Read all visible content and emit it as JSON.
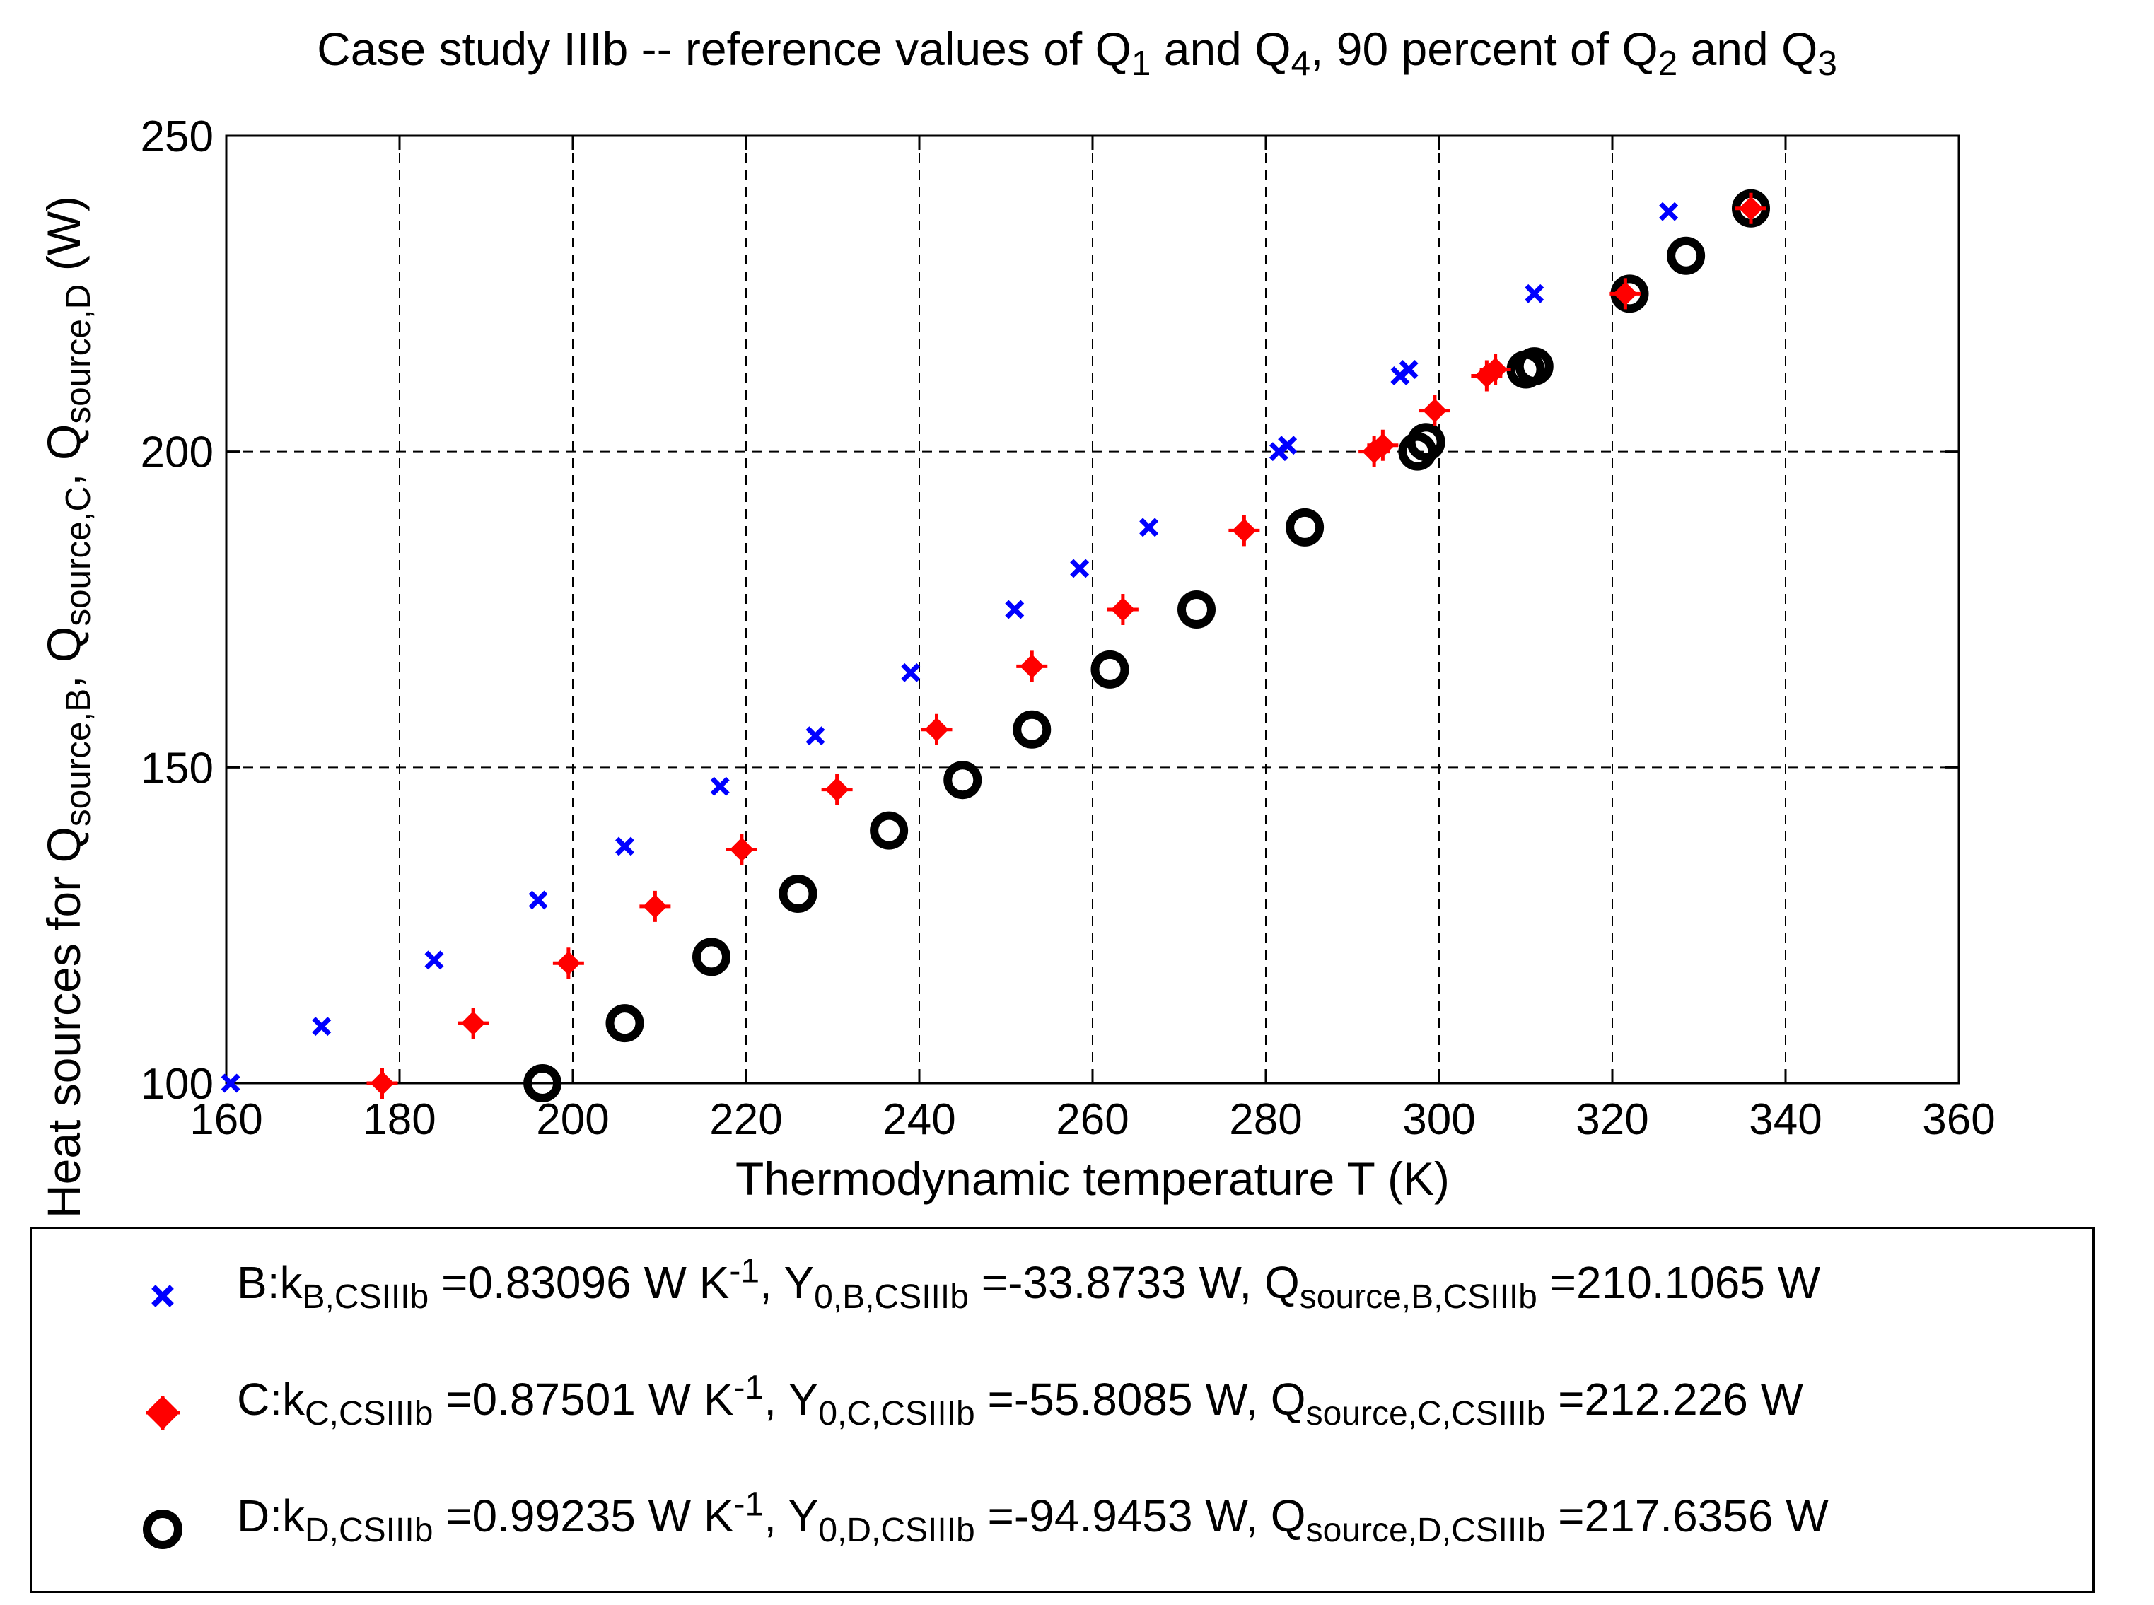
{
  "chart_data": {
    "type": "scatter",
    "title": "Case study IIIb -- reference values of Q1 and Q4, 90 percent of Q2 and Q3",
    "title_parts": {
      "pre": "Case study IIIb -- reference values of Q",
      "s1": "1",
      "and1": " and Q",
      "s4": "4",
      "mid": ", 90 percent of Q",
      "s2": "2",
      "and2": " and Q",
      "s3": "3"
    },
    "xlabel": "Thermodynamic temperature T (K)",
    "ylabel": "Heat sources for Qsource,B, Qsource,C, Qsource,D (W)",
    "ylabel_parts": {
      "pre": "Heat sources for Q",
      "b": "source,B",
      "c1": ", Q",
      "c": "source,C",
      "d1": ", Q",
      "d": "source,D",
      "unit": " (W)"
    },
    "xlim": [
      160,
      360
    ],
    "ylim": [
      100,
      250
    ],
    "xticks": [
      160,
      180,
      200,
      220,
      240,
      260,
      280,
      300,
      320,
      340,
      360
    ],
    "yticks": [
      100,
      150,
      200,
      250
    ],
    "grid": true,
    "legend_position": "bottom (below plot)",
    "series": [
      {
        "name": "B",
        "color": "#0000ff",
        "marker": "x",
        "legend": {
          "k": "B:k",
          "k_sub": "B,CSIIIb",
          "k_val": " =0.83096 W K",
          "k_exp": "-1",
          "y": ", Y",
          "y_sub": "0,B,CSIIIb",
          "y_val": " =-33.8733 W, Q",
          "q_sub": "source,B,CSIIIb",
          "q_val": " =210.1065 W"
        },
        "points": [
          [
            160.5,
            100
          ],
          [
            171,
            109
          ],
          [
            184,
            119.5
          ],
          [
            196,
            129
          ],
          [
            206,
            137.5
          ],
          [
            217,
            147
          ],
          [
            228,
            155
          ],
          [
            239,
            165
          ],
          [
            251,
            175
          ],
          [
            258.5,
            181.5
          ],
          [
            266.5,
            188
          ],
          [
            281.5,
            200
          ],
          [
            282.5,
            201
          ],
          [
            295.5,
            212
          ],
          [
            296.5,
            213
          ],
          [
            311,
            225
          ],
          [
            326.5,
            238
          ]
        ]
      },
      {
        "name": "C",
        "color": "#ff0000",
        "marker": "plus-diamond",
        "legend": {
          "k": "C:k",
          "k_sub": "C,CSIIIb",
          "k_val": " =0.87501 W K",
          "k_exp": "-1",
          "y": ", Y",
          "y_sub": "0,C,CSIIIb",
          "y_val": " =-55.8085 W, Q",
          "q_sub": "source,C,CSIIIb",
          "q_val": " =212.226 W"
        },
        "points": [
          [
            178,
            100
          ],
          [
            188.5,
            109.5
          ],
          [
            199.5,
            119
          ],
          [
            209.5,
            128
          ],
          [
            219.5,
            137
          ],
          [
            230.5,
            146.5
          ],
          [
            242,
            156
          ],
          [
            253,
            166
          ],
          [
            263.5,
            175
          ],
          [
            277.5,
            187.5
          ],
          [
            292.5,
            200
          ],
          [
            293.5,
            201
          ],
          [
            299.5,
            206.5
          ],
          [
            305.5,
            212
          ],
          [
            306.5,
            213
          ],
          [
            321.5,
            225
          ],
          [
            336,
            238.5
          ]
        ]
      },
      {
        "name": "D",
        "color": "#000000",
        "marker": "circle",
        "legend": {
          "k": "D:k",
          "k_sub": "D,CSIIIb",
          "k_val": " =0.99235 W K",
          "k_exp": "-1",
          "y": ", Y",
          "y_sub": "0,D,CSIIIb",
          "y_val": " =-94.9453 W, Q",
          "q_sub": "source,D,CSIIIb",
          "q_val": " =217.6356 W"
        },
        "points": [
          [
            196.5,
            100
          ],
          [
            206,
            109.5
          ],
          [
            216,
            120
          ],
          [
            226,
            130
          ],
          [
            236.5,
            140
          ],
          [
            245,
            148
          ],
          [
            253,
            156
          ],
          [
            262,
            165.5
          ],
          [
            272,
            175
          ],
          [
            284.5,
            188
          ],
          [
            297.5,
            200
          ],
          [
            298.5,
            201.5
          ],
          [
            310,
            213
          ],
          [
            311,
            213.5
          ],
          [
            322,
            225
          ],
          [
            328.5,
            231
          ],
          [
            336,
            238.5
          ]
        ]
      }
    ]
  }
}
